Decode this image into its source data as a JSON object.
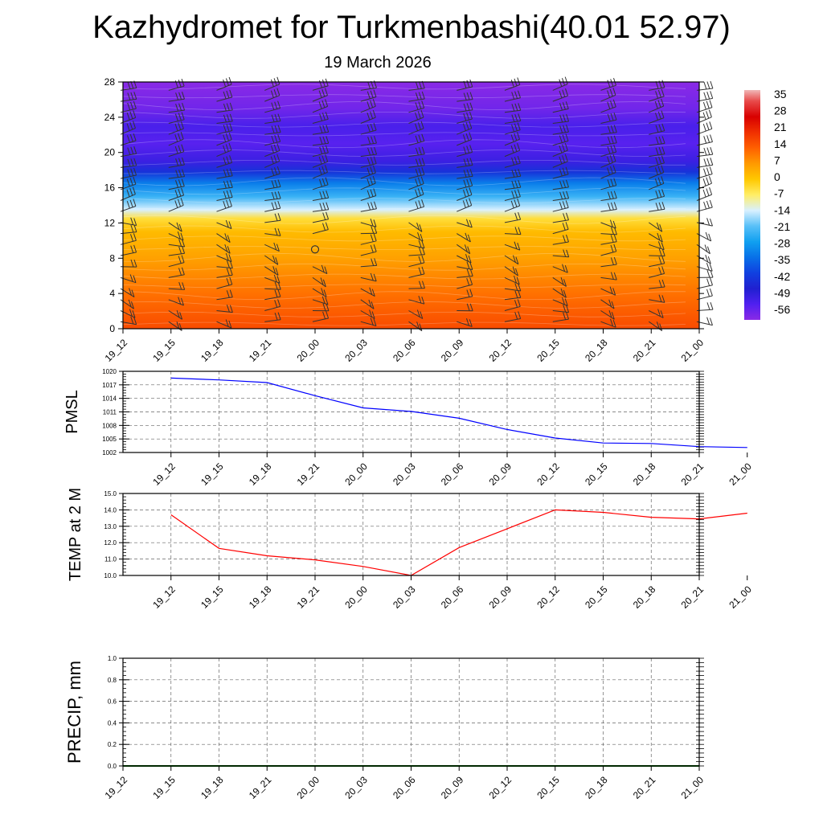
{
  "header": {
    "title": "Kazhydromet for Turkmenbashi(40.01 52.97)",
    "date": "19 March 2026"
  },
  "chart_data": [
    {
      "type": "heatmap",
      "name": "cross-section",
      "ylim": [
        0,
        28
      ],
      "yticks": [
        "0",
        "4",
        "8",
        "12",
        "16",
        "20",
        "24",
        "28"
      ],
      "x": [
        "19_12",
        "19_15",
        "19_18",
        "19_21",
        "20_00",
        "20_03",
        "20_06",
        "20_09",
        "20_12",
        "20_15",
        "20_18",
        "20_21",
        "21_00"
      ],
      "colorbar": {
        "labels": [
          "35",
          "28",
          "21",
          "14",
          "7",
          "0",
          "-7",
          "-14",
          "-21",
          "-28",
          "-35",
          "-42",
          "-49",
          "-56"
        ],
        "stops": [
          {
            "value": 40,
            "color": "#f0b8b8"
          },
          {
            "value": 35,
            "color": "#e84a4a"
          },
          {
            "value": 28,
            "color": "#d80000"
          },
          {
            "value": 21,
            "color": "#f03000"
          },
          {
            "value": 14,
            "color": "#ff6000"
          },
          {
            "value": 7,
            "color": "#ff9a00"
          },
          {
            "value": 0,
            "color": "#ffc800"
          },
          {
            "value": -7,
            "color": "#ffee66"
          },
          {
            "value": -14,
            "color": "#d8f0ff"
          },
          {
            "value": -21,
            "color": "#58c0f8"
          },
          {
            "value": -28,
            "color": "#10a0f0"
          },
          {
            "value": -35,
            "color": "#0870e8"
          },
          {
            "value": -42,
            "color": "#1040e0"
          },
          {
            "value": -49,
            "color": "#2020d0"
          },
          {
            "value": -56,
            "color": "#5020f0"
          },
          {
            "value": -63,
            "color": "#8a2ae6"
          }
        ]
      },
      "temperature_profile": [
        {
          "height": 0,
          "value": 17
        },
        {
          "height": 4,
          "value": 12
        },
        {
          "height": 8,
          "value": 6
        },
        {
          "height": 11,
          "value": 2
        },
        {
          "height": 12.5,
          "value": -4
        },
        {
          "height": 13.5,
          "value": -14
        },
        {
          "height": 15,
          "value": -24
        },
        {
          "height": 16.5,
          "value": -33
        },
        {
          "height": 17.8,
          "value": -45
        },
        {
          "height": 19,
          "value": -53
        },
        {
          "height": 21,
          "value": -57
        },
        {
          "height": 23,
          "value": -55
        },
        {
          "height": 25,
          "value": -60
        },
        {
          "height": 28,
          "value": -63
        }
      ]
    },
    {
      "type": "line",
      "name": "pmsl",
      "ylabel": "PMSL",
      "ylim": [
        1002,
        1020
      ],
      "yticks": [
        "1002",
        "1005",
        "1008",
        "1011",
        "1014",
        "1017",
        "1020"
      ],
      "x": [
        "19_12",
        "19_15",
        "19_18",
        "19_21",
        "20_00",
        "20_03",
        "20_06",
        "20_09",
        "20_12",
        "20_15",
        "20_18",
        "20_21",
        "21_00"
      ],
      "values": [
        1018.5,
        1018.1,
        1017.5,
        1014.6,
        1011.9,
        1011.1,
        1009.6,
        1007.1,
        1005.2,
        1004.1,
        1004.0,
        1003.3,
        1003.1
      ],
      "color": "#0000ff"
    },
    {
      "type": "line",
      "name": "temp",
      "ylabel": "TEMP at 2 M",
      "ylim": [
        10.0,
        15.0
      ],
      "yticks": [
        "10.0",
        "11.0",
        "12.0",
        "13.0",
        "14.0",
        "15.0"
      ],
      "x": [
        "19_12",
        "19_15",
        "19_18",
        "19_21",
        "20_00",
        "20_03",
        "20_06",
        "20_09",
        "20_12",
        "20_15",
        "20_18",
        "20_21",
        "21_00"
      ],
      "values": [
        13.7,
        11.65,
        11.2,
        10.95,
        10.55,
        10.0,
        11.7,
        12.85,
        14.0,
        13.85,
        13.55,
        13.45,
        13.8
      ],
      "color": "#ff0000"
    },
    {
      "type": "line",
      "name": "precip",
      "ylabel": "PRECIP, mm",
      "ylim": [
        0.0,
        1.0
      ],
      "yticks": [
        "0.0",
        "0.2",
        "0.4",
        "0.6",
        "0.8",
        "1.0"
      ],
      "x": [
        "19_12",
        "19_15",
        "19_18",
        "19_21",
        "20_00",
        "20_03",
        "20_06",
        "20_09",
        "20_12",
        "20_15",
        "20_18",
        "20_21",
        "21_00"
      ],
      "values": [
        0,
        0,
        0,
        0,
        0,
        0,
        0,
        0,
        0,
        0,
        0,
        0,
        0
      ],
      "color": "#006400"
    }
  ]
}
